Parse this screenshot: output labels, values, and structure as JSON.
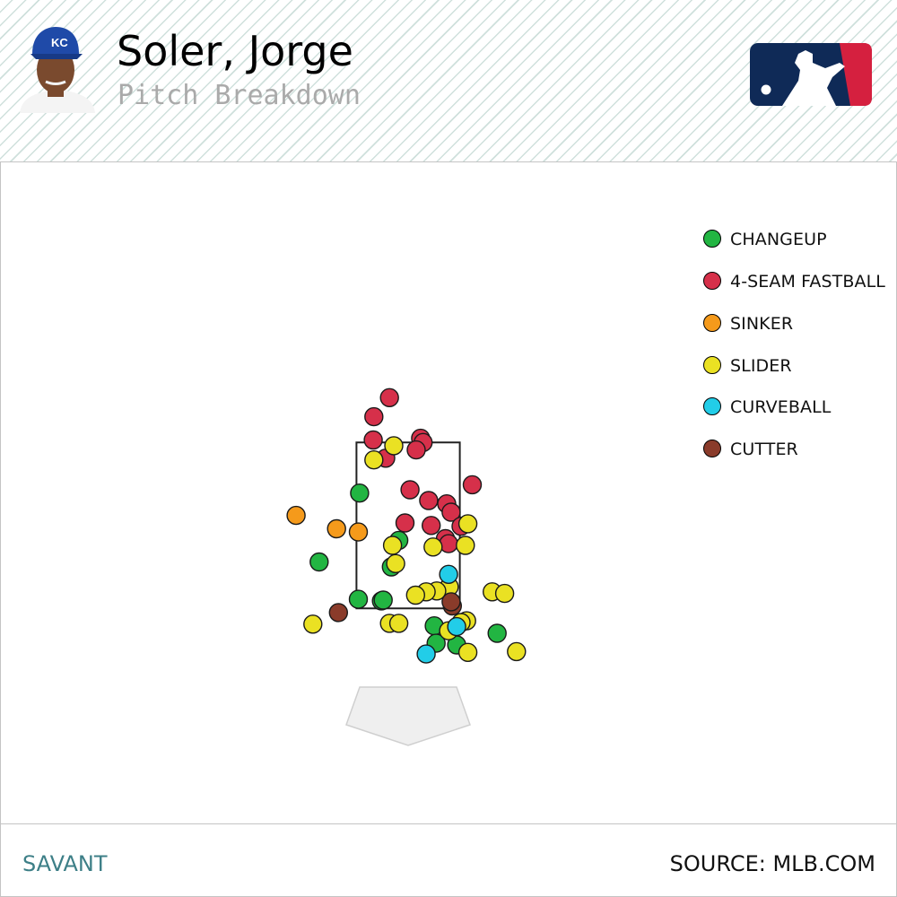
{
  "header": {
    "player_name": "Soler, Jorge",
    "subtitle": "Pitch Breakdown"
  },
  "legend": [
    {
      "label": "CHANGEUP",
      "color": "#22b542"
    },
    {
      "label": "4-SEAM FASTBALL",
      "color": "#d6304a"
    },
    {
      "label": "SINKER",
      "color": "#f59a1b"
    },
    {
      "label": "SLIDER",
      "color": "#eae123"
    },
    {
      "label": "CURVEBALL",
      "color": "#22cde8"
    },
    {
      "label": "CUTTER",
      "color": "#8a3b2a"
    }
  ],
  "chart_data": {
    "type": "scatter",
    "title": "Pitch Breakdown",
    "xlim": [
      -3.0,
      3.0
    ],
    "ylim": [
      -0.5,
      5.3
    ],
    "zone": {
      "x": [
        -0.83,
        0.83
      ],
      "y": [
        1.5,
        3.5
      ]
    },
    "series": [
      {
        "name": "CHANGEUP",
        "color": "#22b542",
        "points": [
          [
            -0.78,
            2.89
          ],
          [
            -1.43,
            2.06
          ],
          [
            -0.8,
            1.61
          ],
          [
            -0.43,
            1.59
          ],
          [
            -0.4,
            1.6
          ],
          [
            -0.15,
            2.32
          ],
          [
            -0.27,
            2.0
          ],
          [
            0.42,
            1.29
          ],
          [
            0.45,
            1.08
          ],
          [
            0.78,
            1.06
          ],
          [
            1.43,
            1.2
          ]
        ]
      },
      {
        "name": "4-SEAM FASTBALL",
        "color": "#d6304a",
        "points": [
          [
            -0.3,
            4.04
          ],
          [
            -0.55,
            3.81
          ],
          [
            -0.56,
            3.53
          ],
          [
            -0.36,
            3.31
          ],
          [
            0.2,
            3.55
          ],
          [
            0.24,
            3.5
          ],
          [
            0.13,
            3.41
          ],
          [
            0.03,
            2.93
          ],
          [
            0.33,
            2.8
          ],
          [
            -0.05,
            2.53
          ],
          [
            0.62,
            2.76
          ],
          [
            0.69,
            2.66
          ],
          [
            0.37,
            2.5
          ],
          [
            0.6,
            2.34
          ],
          [
            0.65,
            2.28
          ],
          [
            0.85,
            2.49
          ],
          [
            1.03,
            2.99
          ]
        ]
      },
      {
        "name": "SINKER",
        "color": "#f59a1b",
        "points": [
          [
            -1.8,
            2.62
          ],
          [
            -1.15,
            2.46
          ],
          [
            -0.8,
            2.42
          ]
        ]
      },
      {
        "name": "SLIDER",
        "color": "#eae123",
        "points": [
          [
            -0.23,
            3.46
          ],
          [
            -0.55,
            3.29
          ],
          [
            -0.25,
            2.26
          ],
          [
            0.4,
            2.24
          ],
          [
            0.96,
            2.52
          ],
          [
            0.92,
            2.26
          ],
          [
            -0.2,
            2.04
          ],
          [
            0.66,
            1.76
          ],
          [
            0.46,
            1.71
          ],
          [
            0.29,
            1.7
          ],
          [
            0.12,
            1.66
          ],
          [
            1.35,
            1.7
          ],
          [
            1.55,
            1.68
          ],
          [
            -0.3,
            1.32
          ],
          [
            -0.15,
            1.32
          ],
          [
            -1.53,
            1.31
          ],
          [
            0.94,
            1.35
          ],
          [
            0.85,
            1.33
          ],
          [
            0.65,
            1.23
          ],
          [
            0.96,
            0.97
          ],
          [
            1.74,
            0.98
          ]
        ]
      },
      {
        "name": "CURVEBALL",
        "color": "#22cde8",
        "points": [
          [
            0.65,
            1.91
          ],
          [
            0.29,
            0.95
          ],
          [
            0.78,
            1.28
          ]
        ]
      },
      {
        "name": "CUTTER",
        "color": "#8a3b2a",
        "points": [
          [
            -1.12,
            1.45
          ],
          [
            0.71,
            1.53
          ],
          [
            0.69,
            1.58
          ]
        ]
      }
    ]
  },
  "footer": {
    "left": "SAVANT",
    "right": "SOURCE: MLB.COM"
  }
}
